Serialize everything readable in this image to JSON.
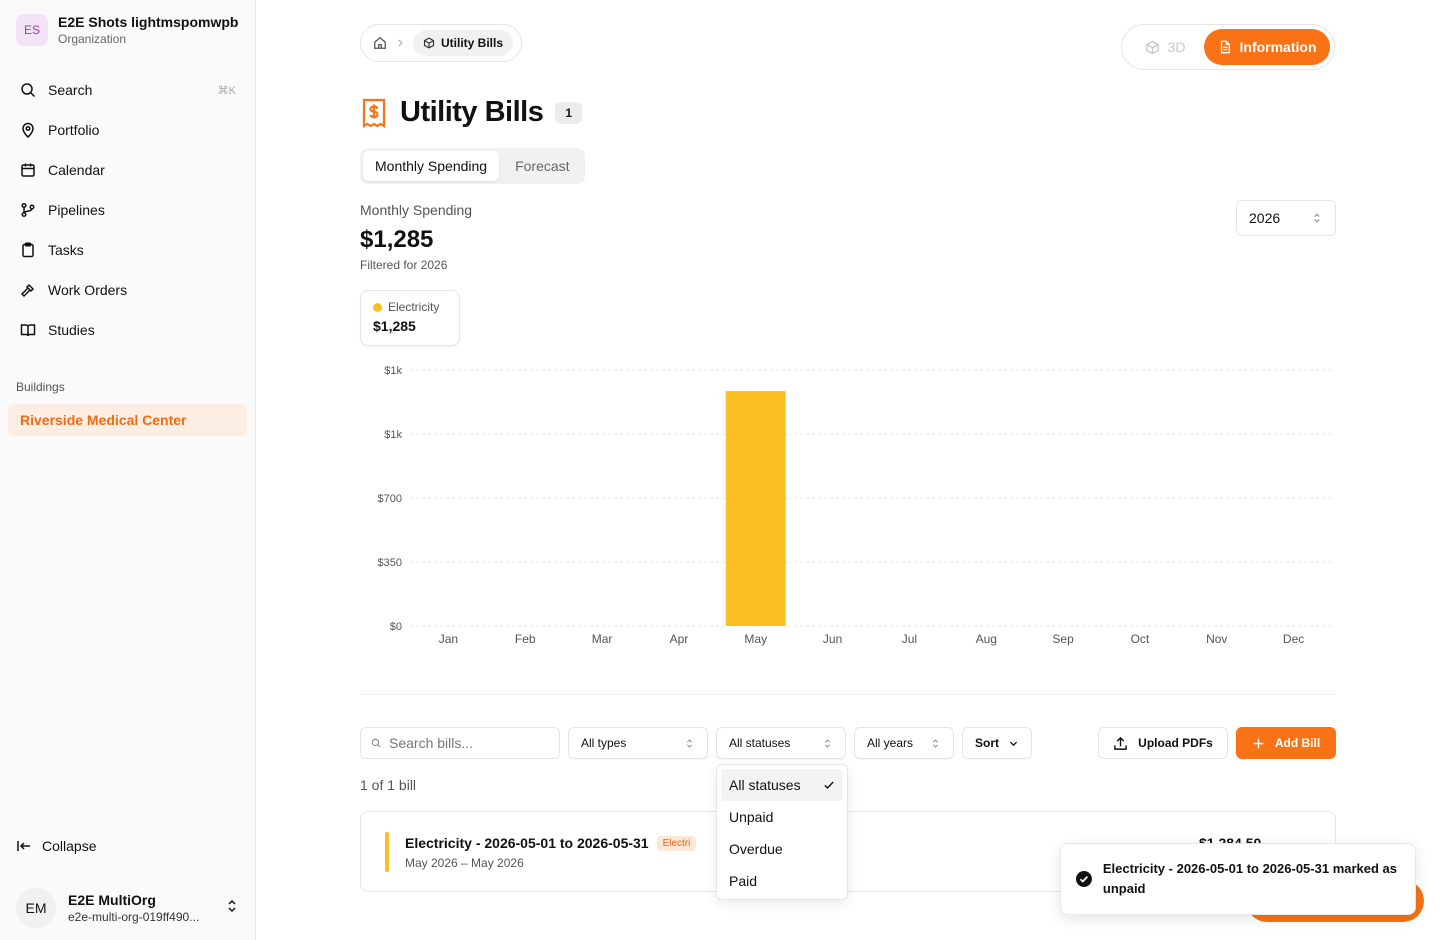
{
  "org": {
    "initials": "ES",
    "name": "E2E Shots lightmspomwpb",
    "type": "Organization"
  },
  "nav": [
    {
      "label": "Search",
      "shortcut": "⌘K",
      "icon": "search-icon"
    },
    {
      "label": "Portfolio",
      "icon": "map-pin-icon"
    },
    {
      "label": "Calendar",
      "icon": "calendar-icon"
    },
    {
      "label": "Pipelines",
      "icon": "git-branch-icon"
    },
    {
      "label": "Tasks",
      "icon": "clipboard-icon"
    },
    {
      "label": "Work Orders",
      "icon": "hammer-icon"
    },
    {
      "label": "Studies",
      "icon": "book-icon"
    }
  ],
  "buildings_label": "Buildings",
  "building": "Riverside Medical Center",
  "collapse_label": "Collapse",
  "user": {
    "initials": "EM",
    "name": "E2E MultiOrg",
    "email": "e2e-multi-org-019ff490..."
  },
  "breadcrumb": {
    "current": "Utility Bills"
  },
  "view_toggle": {
    "three_d": "3D",
    "info": "Information"
  },
  "page": {
    "title": "Utility Bills",
    "count": "1"
  },
  "tabs": [
    "Monthly Spending",
    "Forecast"
  ],
  "summary": {
    "label": "Monthly Spending",
    "total": "$1,285",
    "filter": "Filtered for 2026"
  },
  "year_select": "2026",
  "legend": {
    "name": "Electricity",
    "value": "$1,285",
    "color": "#fbbf24"
  },
  "chart_data": {
    "type": "bar",
    "categories": [
      "Jan",
      "Feb",
      "Mar",
      "Apr",
      "May",
      "Jun",
      "Jul",
      "Aug",
      "Sep",
      "Oct",
      "Nov",
      "Dec"
    ],
    "series": [
      {
        "name": "Electricity",
        "values": [
          0,
          0,
          0,
          0,
          1284.5,
          0,
          0,
          0,
          0,
          0,
          0,
          0
        ],
        "color": "#fbbf24"
      }
    ],
    "y_ticks": [
      0,
      350,
      700,
      1050,
      1400
    ],
    "y_tick_labels": [
      "$0",
      "$350",
      "$700",
      "$1k",
      "$1k"
    ],
    "ylim": [
      0,
      1400
    ],
    "grid": true
  },
  "filters": {
    "search_placeholder": "Search bills...",
    "type": "All types",
    "status": "All statuses",
    "years": "All years",
    "sort": "Sort",
    "upload": "Upload PDFs",
    "add": "Add Bill"
  },
  "result_count": "1 of 1 bill",
  "bill": {
    "title": "Electricity - 2026-05-01 to 2026-05-31",
    "tag": "Electri",
    "range": "May 2026 – May 2026",
    "amount": "$1,284.50"
  },
  "status_dropdown": [
    "All statuses",
    "Unpaid",
    "Overdue",
    "Paid"
  ],
  "toast": {
    "message": "Electricity - 2026-05-01 to 2026-05-31 marked as unpaid"
  },
  "colors": {
    "accent": "#f97316",
    "electricity": "#fbbf24"
  }
}
